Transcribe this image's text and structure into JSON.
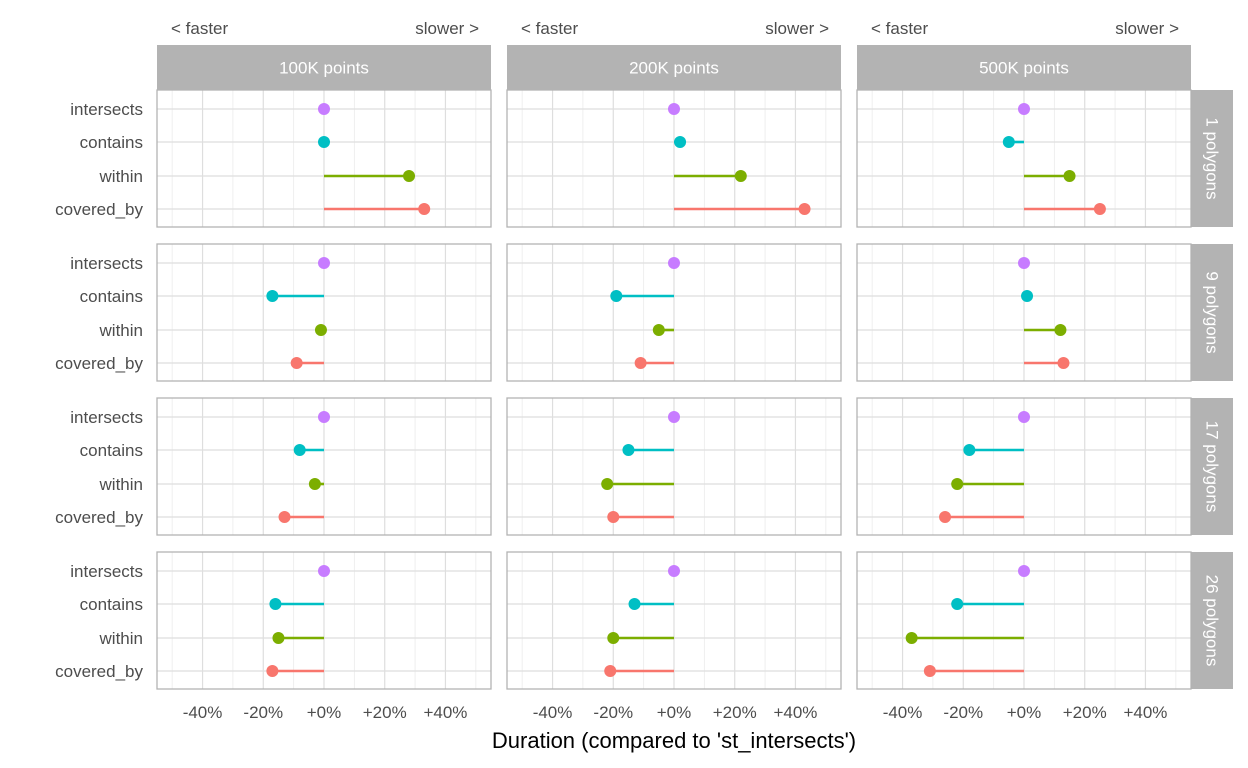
{
  "chart_data": {
    "type": "lollipop",
    "xlabel": "Duration (compared to 'st_intersects')",
    "ylabel": "",
    "xlim": [
      -55,
      55
    ],
    "x_ticks": [
      -40,
      -20,
      0,
      20,
      40
    ],
    "x_tick_labels": [
      "-40%",
      "-20%",
      "+0%",
      "+20%",
      "+40%"
    ],
    "top_annotations": {
      "left": "< faster",
      "right": "slower >"
    },
    "columns": [
      "100K points",
      "200K points",
      "500K points"
    ],
    "rows": [
      "1 polygons",
      "9 polygons",
      "17 polygons",
      "26 polygons"
    ],
    "categories": [
      "intersects",
      "contains",
      "within",
      "covered_by"
    ],
    "colors": {
      "intersects": "#c77cff",
      "contains": "#00bfc4",
      "within": "#7cae00",
      "covered_by": "#f8766d"
    },
    "grid": true,
    "panels": [
      {
        "row": "1 polygons",
        "column": "100K points",
        "values": {
          "intersects": 0,
          "contains": 0,
          "within": 28,
          "covered_by": 33
        }
      },
      {
        "row": "1 polygons",
        "column": "200K points",
        "values": {
          "intersects": 0,
          "contains": 2,
          "within": 22,
          "covered_by": 43
        }
      },
      {
        "row": "1 polygons",
        "column": "500K points",
        "values": {
          "intersects": 0,
          "contains": -5,
          "within": 15,
          "covered_by": 25
        }
      },
      {
        "row": "9 polygons",
        "column": "100K points",
        "values": {
          "intersects": 0,
          "contains": -17,
          "within": -1,
          "covered_by": -9
        }
      },
      {
        "row": "9 polygons",
        "column": "200K points",
        "values": {
          "intersects": 0,
          "contains": -19,
          "within": -5,
          "covered_by": -11
        }
      },
      {
        "row": "9 polygons",
        "column": "500K points",
        "values": {
          "intersects": 0,
          "contains": 1,
          "within": 12,
          "covered_by": 13
        }
      },
      {
        "row": "17 polygons",
        "column": "100K points",
        "values": {
          "intersects": 0,
          "contains": -8,
          "within": -3,
          "covered_by": -13
        }
      },
      {
        "row": "17 polygons",
        "column": "200K points",
        "values": {
          "intersects": 0,
          "contains": -15,
          "within": -22,
          "covered_by": -20
        }
      },
      {
        "row": "17 polygons",
        "column": "500K points",
        "values": {
          "intersects": 0,
          "contains": -18,
          "within": -22,
          "covered_by": -26
        }
      },
      {
        "row": "26 polygons",
        "column": "100K points",
        "values": {
          "intersects": 0,
          "contains": -16,
          "within": -15,
          "covered_by": -17
        }
      },
      {
        "row": "26 polygons",
        "column": "200K points",
        "values": {
          "intersects": 0,
          "contains": -13,
          "within": -20,
          "covered_by": -21
        }
      },
      {
        "row": "26 polygons",
        "column": "500K points",
        "values": {
          "intersects": 0,
          "contains": -22,
          "within": -37,
          "covered_by": -31
        }
      }
    ]
  }
}
